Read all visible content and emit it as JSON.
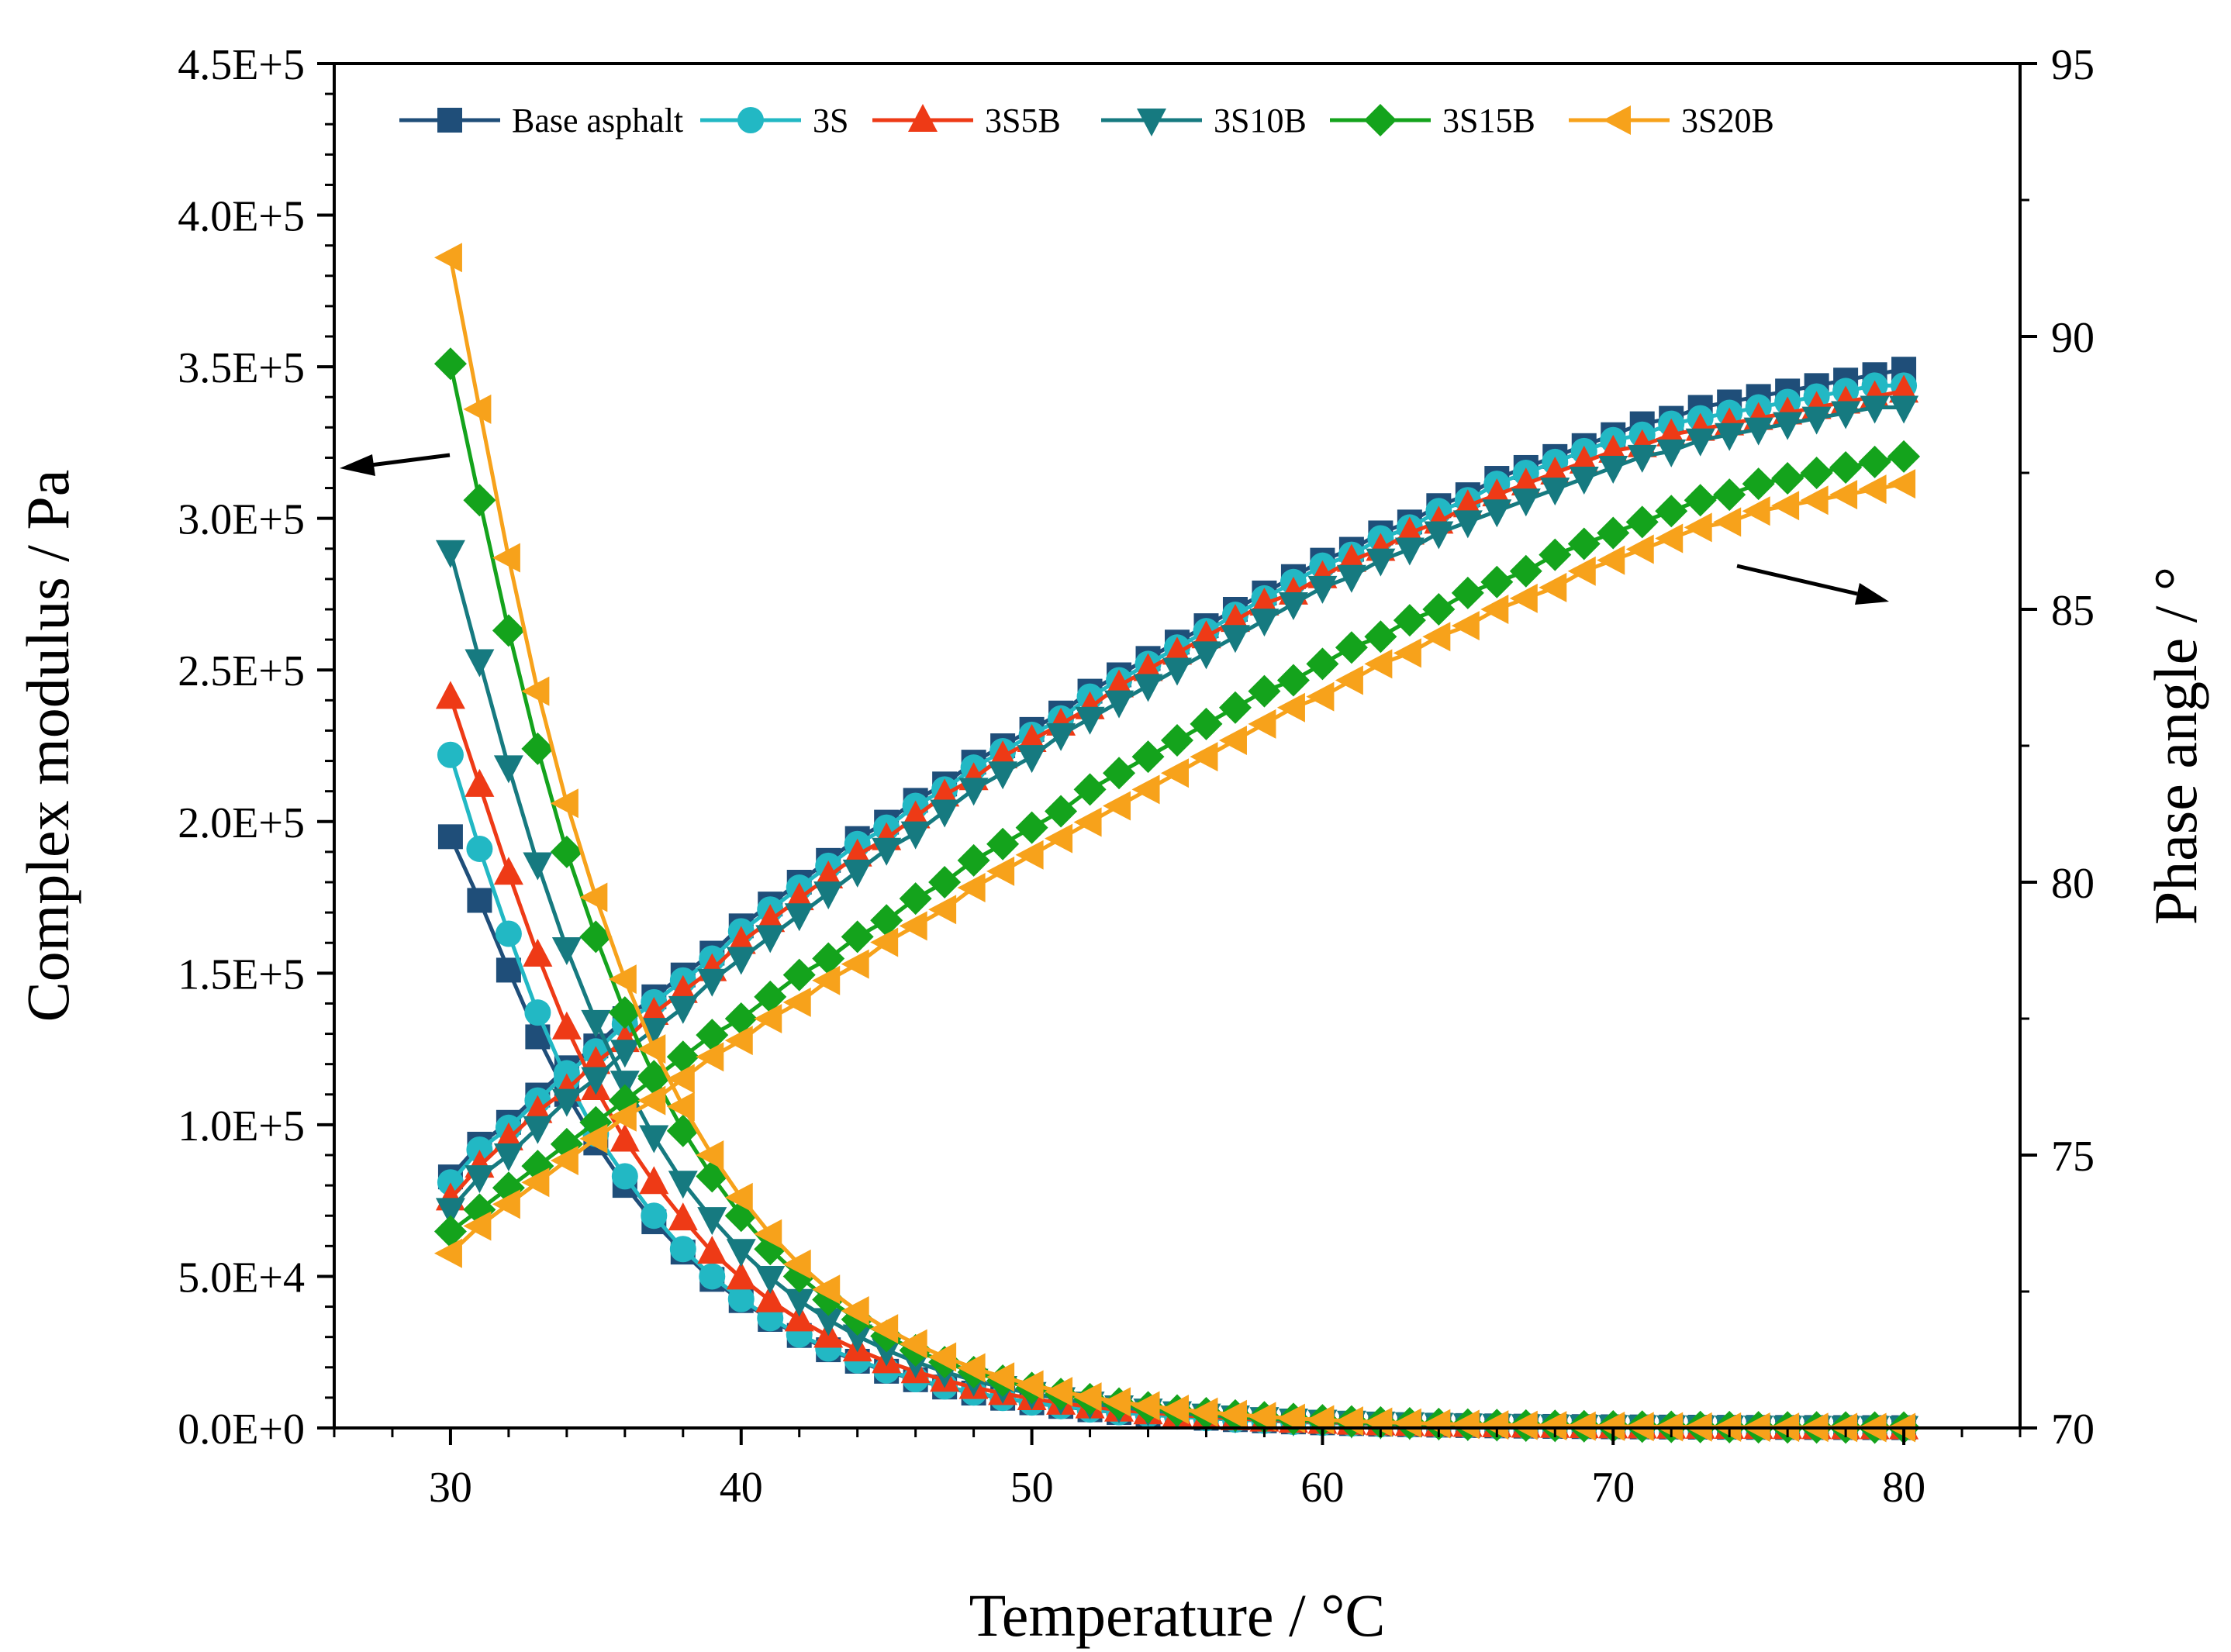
{
  "chart_data": {
    "type": "line",
    "dual_axis": true,
    "xlabel": "Temperature / °C",
    "ylabel_left": "Complex modulus / Pa",
    "ylabel_right": "Phase angle / °",
    "xlim": [
      26,
      84
    ],
    "ylim_left": [
      0,
      450000
    ],
    "ylim_right": [
      70,
      95
    ],
    "x_ticks": [
      "30",
      "40",
      "50",
      "60",
      "70",
      "80"
    ],
    "y_left_ticks": [
      "0.0E+0",
      "5.0E+4",
      "1.0E+5",
      "1.5E+5",
      "2.0E+5",
      "2.5E+5",
      "3.0E+5",
      "3.5E+5",
      "4.0E+5",
      "4.5E+5"
    ],
    "y_right_ticks": [
      "70",
      "75",
      "80",
      "85",
      "90",
      "95"
    ],
    "x_start": 30,
    "x_step": 1,
    "legend_position": "top",
    "series": [
      {
        "name": "Base asphalt",
        "color": "#1f4e79",
        "marker": "square",
        "complex_modulus": [
          195000,
          174000,
          151000,
          129000,
          110000,
          94000,
          80000,
          68000,
          58000,
          49000,
          42000,
          35800,
          30500,
          25800,
          22000,
          18700,
          15900,
          13500,
          11500,
          9800,
          8300,
          7100,
          6000,
          5100,
          4400,
          3750,
          3200,
          2750,
          2350,
          2000,
          1700,
          1450,
          1250,
          1080,
          930,
          800,
          690,
          600,
          520,
          450,
          390,
          340,
          295,
          257,
          224,
          195,
          170,
          150,
          131,
          115,
          101
        ],
        "phase_angle": [
          74.6,
          75.2,
          75.6,
          76.1,
          76.6,
          77.0,
          77.5,
          77.9,
          78.3,
          78.7,
          79.2,
          79.6,
          80.0,
          80.4,
          80.8,
          81.1,
          81.5,
          81.8,
          82.2,
          82.5,
          82.8,
          83.1,
          83.5,
          83.8,
          84.1,
          84.4,
          84.7,
          85.0,
          85.3,
          85.6,
          85.9,
          86.1,
          86.4,
          86.6,
          86.9,
          87.1,
          87.4,
          87.6,
          87.8,
          88.0,
          88.2,
          88.4,
          88.5,
          88.7,
          88.8,
          88.9,
          89.0,
          89.1,
          89.2,
          89.3,
          89.4
        ]
      },
      {
        "name": "3S",
        "color": "#22b8c4",
        "marker": "circle",
        "complex_modulus": [
          222000,
          191000,
          163000,
          137000,
          115000,
          97000,
          83000,
          70000,
          59000,
          50000,
          42500,
          36200,
          30800,
          26200,
          22300,
          19000,
          16100,
          13700,
          11700,
          9900,
          8400,
          7200,
          6100,
          5200,
          4450,
          3800,
          3250,
          2780,
          2380,
          2030,
          1730,
          1480,
          1270,
          1090,
          940,
          810,
          700,
          605,
          525,
          455,
          395,
          343,
          298,
          260,
          226,
          197,
          172,
          151,
          132,
          116,
          102
        ],
        "phase_angle": [
          74.5,
          75.1,
          75.5,
          76.0,
          76.5,
          76.9,
          77.4,
          77.8,
          78.2,
          78.6,
          79.1,
          79.5,
          79.9,
          80.3,
          80.7,
          81.0,
          81.4,
          81.7,
          82.1,
          82.4,
          82.7,
          83.0,
          83.4,
          83.7,
          84.0,
          84.3,
          84.6,
          84.9,
          85.2,
          85.5,
          85.8,
          86.0,
          86.3,
          86.5,
          86.8,
          87.0,
          87.3,
          87.5,
          87.7,
          87.9,
          88.1,
          88.2,
          88.4,
          88.5,
          88.6,
          88.7,
          88.8,
          88.9,
          89.0,
          89.1,
          89.1
        ]
      },
      {
        "name": "3S5B",
        "color": "#ee3a16",
        "marker": "triangle-up",
        "complex_modulus": [
          241000,
          212000,
          183000,
          156000,
          132000,
          112000,
          95000,
          81000,
          69000,
          58000,
          49500,
          42000,
          35700,
          30300,
          25800,
          21900,
          18600,
          15800,
          13400,
          11400,
          9700,
          8200,
          7000,
          5950,
          5050,
          4300,
          3650,
          3100,
          2650,
          2250,
          1920,
          1640,
          1400,
          1200,
          1030,
          880,
          760,
          655,
          565,
          490,
          425,
          368,
          320,
          278,
          242,
          210,
          183,
          160,
          140,
          122,
          107
        ],
        "phase_angle": [
          74.2,
          74.8,
          75.3,
          75.8,
          76.2,
          76.7,
          77.1,
          77.6,
          78.0,
          78.4,
          78.9,
          79.3,
          79.7,
          80.1,
          80.5,
          80.8,
          81.2,
          81.6,
          81.9,
          82.3,
          82.6,
          82.9,
          83.2,
          83.6,
          83.9,
          84.2,
          84.5,
          84.8,
          85.1,
          85.3,
          85.6,
          85.9,
          86.1,
          86.4,
          86.6,
          86.9,
          87.1,
          87.3,
          87.5,
          87.7,
          87.9,
          88.0,
          88.2,
          88.3,
          88.4,
          88.5,
          88.6,
          88.7,
          88.8,
          88.9,
          89.0
        ]
      },
      {
        "name": "3S10B",
        "color": "#167a80",
        "marker": "triangle-down",
        "complex_modulus": [
          289000,
          253000,
          218000,
          186000,
          158000,
          134000,
          114000,
          96000,
          81000,
          69000,
          58500,
          49600,
          42000,
          35700,
          30300,
          25700,
          21800,
          18500,
          15700,
          13300,
          11300,
          9600,
          8150,
          6900,
          5850,
          4950,
          4200,
          3570,
          3030,
          2570,
          2180,
          1850,
          1570,
          1340,
          1140,
          970,
          830,
          710,
          610,
          525,
          450,
          388,
          335,
          290,
          250,
          217,
          189,
          164,
          143,
          125,
          110
        ],
        "phase_angle": [
          74.0,
          74.6,
          75.0,
          75.5,
          76.0,
          76.4,
          76.9,
          77.3,
          77.7,
          78.2,
          78.6,
          79.0,
          79.4,
          79.8,
          80.2,
          80.6,
          80.9,
          81.3,
          81.7,
          82.0,
          82.3,
          82.7,
          83.0,
          83.3,
          83.6,
          83.9,
          84.2,
          84.5,
          84.8,
          85.1,
          85.4,
          85.6,
          85.9,
          86.1,
          86.4,
          86.6,
          86.8,
          87.0,
          87.2,
          87.4,
          87.6,
          87.8,
          87.9,
          88.1,
          88.2,
          88.3,
          88.4,
          88.5,
          88.6,
          88.7,
          88.7
        ]
      },
      {
        "name": "3S15B",
        "color": "#14a31c",
        "marker": "diamond",
        "complex_modulus": [
          351000,
          306000,
          263000,
          224000,
          190000,
          162000,
          137000,
          116000,
          98000,
          83000,
          70000,
          59000,
          50000,
          42300,
          35800,
          30300,
          25600,
          21700,
          18400,
          15600,
          13200,
          11200,
          9500,
          8050,
          6800,
          5750,
          4870,
          4130,
          3500,
          2960,
          2510,
          2130,
          1810,
          1540,
          1310,
          1110,
          950,
          810,
          690,
          590,
          505,
          433,
          372,
          320,
          276,
          238,
          206,
          178,
          155,
          135,
          118
        ],
        "phase_angle": [
          73.6,
          74.0,
          74.4,
          74.8,
          75.2,
          75.6,
          76.0,
          76.4,
          76.8,
          77.2,
          77.5,
          77.9,
          78.3,
          78.6,
          79.0,
          79.3,
          79.7,
          80.0,
          80.4,
          80.7,
          81.0,
          81.3,
          81.7,
          82.0,
          82.3,
          82.6,
          82.9,
          83.2,
          83.5,
          83.7,
          84.0,
          84.3,
          84.5,
          84.8,
          85.0,
          85.3,
          85.5,
          85.7,
          86.0,
          86.2,
          86.4,
          86.6,
          86.8,
          87.0,
          87.1,
          87.3,
          87.4,
          87.5,
          87.6,
          87.7,
          87.8
        ]
      },
      {
        "name": "3S20B",
        "color": "#f7a21b",
        "marker": "triangle-left",
        "complex_modulus": [
          386000,
          336000,
          287000,
          243000,
          206000,
          175000,
          148000,
          125000,
          106000,
          90000,
          76000,
          64000,
          54000,
          45700,
          38600,
          32700,
          27700,
          23400,
          19800,
          16800,
          14200,
          12000,
          10200,
          8600,
          7300,
          6150,
          5200,
          4400,
          3730,
          3150,
          2670,
          2260,
          1920,
          1630,
          1380,
          1170,
          1000,
          850,
          725,
          620,
          530,
          455,
          390,
          335,
          288,
          248,
          214,
          185,
          160,
          139,
          121
        ],
        "phase_angle": [
          73.2,
          73.7,
          74.1,
          74.5,
          74.9,
          75.3,
          75.7,
          76.0,
          76.4,
          76.8,
          77.1,
          77.5,
          77.8,
          78.2,
          78.5,
          78.9,
          79.2,
          79.5,
          79.9,
          80.2,
          80.5,
          80.8,
          81.1,
          81.4,
          81.7,
          82.0,
          82.3,
          82.6,
          82.9,
          83.2,
          83.4,
          83.7,
          84.0,
          84.2,
          84.5,
          84.7,
          85.0,
          85.2,
          85.4,
          85.7,
          85.9,
          86.1,
          86.3,
          86.5,
          86.6,
          86.8,
          86.9,
          87.0,
          87.1,
          87.2,
          87.3
        ]
      }
    ]
  }
}
